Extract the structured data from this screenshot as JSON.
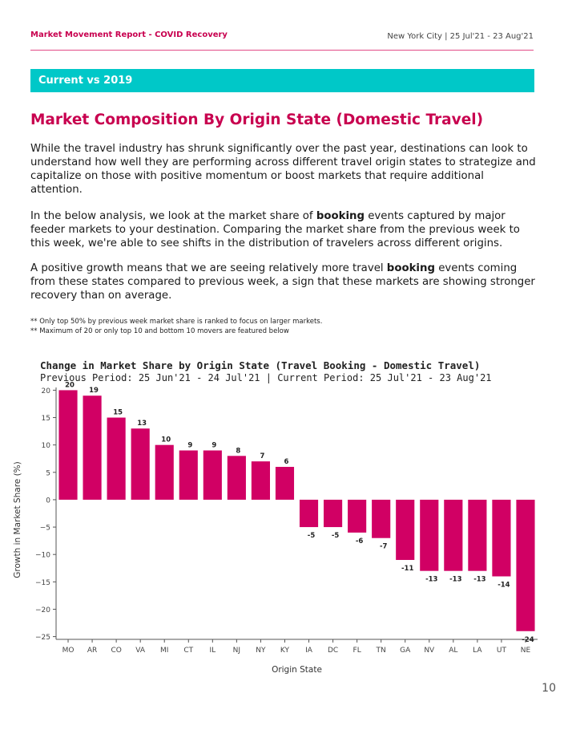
{
  "header": {
    "report_title": "Market Movement Report - COVID Recovery",
    "location_period": "New York City | 25 Jul'21 - 23 Aug'21"
  },
  "section": {
    "label": "Current vs 2019"
  },
  "heading": "Market Composition By Origin State (Domestic Travel)",
  "paragraphs": {
    "p1": "While the travel industry has shrunk significantly over the past year, destinations can look to understand how well they are performing across different travel origin states to strategize and capitalize on those with positive momentum or boost markets that require additional attention.",
    "p2_before": "In the below analysis, we look at the market share of ",
    "p2_bold": "booking",
    "p2_after": " events captured by major feeder markets to your destination. Comparing the market share from the previous week to this week, we're able to see shifts in the distribution of travelers across different origins.",
    "p3_before": "A positive growth means that we are seeing relatively more travel ",
    "p3_bold": "booking",
    "p3_after": " events coming from these states compared to previous week, a sign that these markets are showing stronger recovery than on average."
  },
  "notes": [
    "** Only top 50%  by previous week market share is ranked to focus on larger markets.",
    "** Maximum of 20 or only top 10 and bottom 10 movers are featured below"
  ],
  "page_number": "10",
  "colors": {
    "brand": "#c8004f",
    "accent": "#00c8c8",
    "bar": "#d10064"
  },
  "chart_data": {
    "type": "bar",
    "title": "Change in Market Share by Origin State (Travel Booking - Domestic Travel)",
    "subtitle": "Previous Period: 25 Jun'21 - 24 Jul'21 | Current Period: 25 Jul'21 - 23 Aug'21",
    "xlabel": "Origin State",
    "ylabel": "Growth in Market Share (%)",
    "categories": [
      "MO",
      "AR",
      "CO",
      "VA",
      "MI",
      "CT",
      "IL",
      "NJ",
      "NY",
      "KY",
      "IA",
      "DC",
      "FL",
      "TN",
      "GA",
      "NV",
      "AL",
      "LA",
      "UT",
      "NE"
    ],
    "values": [
      20,
      19,
      15,
      13,
      10,
      9,
      9,
      8,
      7,
      6,
      -5,
      -5,
      -6,
      -7,
      -11,
      -13,
      -13,
      -13,
      -14,
      -24
    ],
    "yticks": [
      20,
      15,
      10,
      5,
      0,
      -5,
      -10,
      -15,
      -20,
      -25
    ],
    "ylim": [
      -25.5,
      20.5
    ],
    "grid": false
  }
}
